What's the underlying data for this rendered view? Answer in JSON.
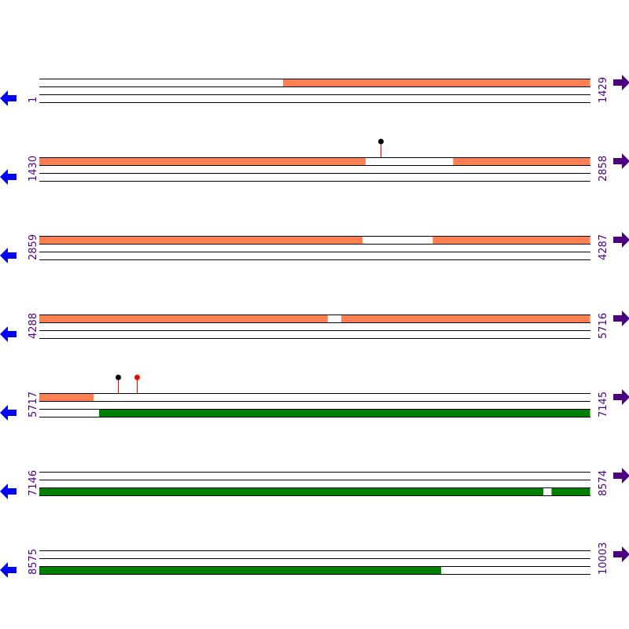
{
  "colors": {
    "forward_feature": "#ff7f50",
    "reverse_feature": "#008000",
    "left_arrow": "#0000ff",
    "right_arrow": "#4b0082",
    "label": "#4b0082",
    "lollipop_stem": "#ff0000"
  },
  "icons": {
    "left": "arrow-left-icon",
    "right": "arrow-right-icon"
  },
  "rows": [
    {
      "start": "1",
      "end": "1429",
      "s": 1,
      "e": 1429,
      "features": [
        {
          "track": "upper",
          "from": 633,
          "to": 1429,
          "color": "#ff7f50"
        }
      ],
      "gaps": [],
      "lollipops": []
    },
    {
      "start": "1430",
      "end": "2858",
      "s": 1430,
      "e": 2858,
      "features": [
        {
          "track": "upper",
          "from": 1430,
          "to": 2276,
          "color": "#ff7f50"
        },
        {
          "track": "upper",
          "from": 2503,
          "to": 2858,
          "color": "#ff7f50"
        }
      ],
      "lollipops": [
        {
          "pos": 2315,
          "head": "#000000"
        }
      ]
    },
    {
      "start": "2859",
      "end": "4287",
      "s": 2859,
      "e": 4287,
      "features": [
        {
          "track": "upper",
          "from": 2859,
          "to": 3697,
          "color": "#ff7f50"
        },
        {
          "track": "upper",
          "from": 3879,
          "to": 4287,
          "color": "#ff7f50"
        }
      ],
      "lollipops": []
    },
    {
      "start": "4288",
      "end": "5716",
      "s": 4288,
      "e": 5716,
      "features": [
        {
          "track": "upper",
          "from": 4288,
          "to": 5036,
          "color": "#ff7f50"
        },
        {
          "track": "upper",
          "from": 5071,
          "to": 5716,
          "color": "#ff7f50"
        }
      ],
      "lollipops": []
    },
    {
      "start": "5717",
      "end": "7145",
      "s": 5717,
      "e": 7145,
      "features": [
        {
          "track": "upper",
          "from": 5717,
          "to": 5858,
          "color": "#ff7f50"
        },
        {
          "track": "lower",
          "from": 5872,
          "to": 7145,
          "color": "#008000"
        }
      ],
      "lollipops": [
        {
          "pos": 5921,
          "head": "#000000"
        },
        {
          "pos": 5970,
          "head": "#ff0000"
        }
      ]
    },
    {
      "start": "7146",
      "end": "8574",
      "s": 7146,
      "e": 8574,
      "features": [
        {
          "track": "lower",
          "from": 7146,
          "to": 8453,
          "color": "#008000"
        },
        {
          "track": "lower",
          "from": 8474,
          "to": 8574,
          "color": "#008000"
        }
      ],
      "lollipops": []
    },
    {
      "start": "8575",
      "end": "10003",
      "s": 8575,
      "e": 10003,
      "features": [
        {
          "track": "lower",
          "from": 8575,
          "to": 9617,
          "color": "#008000"
        }
      ],
      "lollipops": []
    }
  ]
}
